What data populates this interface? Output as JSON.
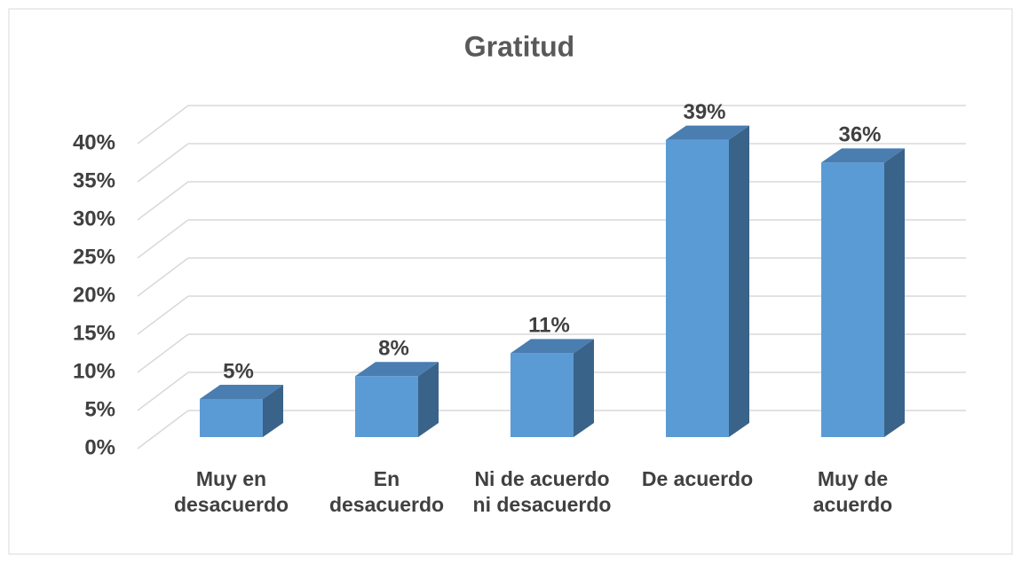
{
  "chart_data": {
    "type": "bar3d",
    "title": "Gratitud",
    "categories": [
      "Muy en desacuerdo",
      "En desacuerdo",
      "Ni de acuerdo ni desacuerdo",
      "De acuerdo",
      "Muy de acuerdo"
    ],
    "values": [
      5,
      8,
      11,
      39,
      36
    ],
    "value_labels": [
      "5%",
      "8%",
      "11%",
      "39%",
      "36%"
    ],
    "color": "#5b9bd5",
    "ylim": [
      0,
      40
    ],
    "yticks": [
      {
        "value": 0,
        "label": "0%"
      },
      {
        "value": 5,
        "label": "5%"
      },
      {
        "value": 10,
        "label": "10%"
      },
      {
        "value": 15,
        "label": "15%"
      },
      {
        "value": 20,
        "label": "20%"
      },
      {
        "value": 25,
        "label": "25%"
      },
      {
        "value": 30,
        "label": "30%"
      },
      {
        "value": 35,
        "label": "35%"
      },
      {
        "value": 40,
        "label": "40%"
      }
    ],
    "grid": true
  }
}
